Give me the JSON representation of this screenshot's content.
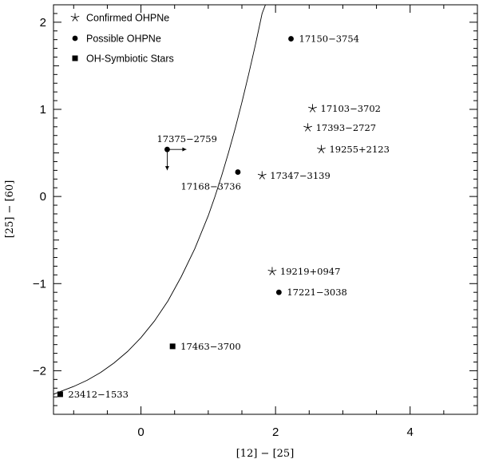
{
  "chart_data": {
    "type": "scatter",
    "xlabel": "[12] − [25]",
    "ylabel": "[25] − [60]",
    "xlim": [
      -1.3,
      5.0
    ],
    "ylim": [
      -2.5,
      2.2
    ],
    "x_major_ticks": [
      0,
      2,
      4
    ],
    "y_major_ticks": [
      -2,
      -1,
      0,
      1,
      2
    ],
    "tick_labels": {
      "x": [
        "0",
        "2",
        "4"
      ],
      "y": [
        "−2",
        "−1",
        "0",
        "1",
        "2"
      ]
    },
    "grid": false,
    "legend_position": "top-left",
    "legend": [
      {
        "label": "Confirmed OHPNe",
        "marker": "star"
      },
      {
        "label": "Possible OHPNe",
        "marker": "circle"
      },
      {
        "label": "OH-Symbiotic Stars",
        "marker": "square"
      }
    ],
    "points": [
      {
        "name": "17150−3754",
        "x": 2.23,
        "y": 1.81,
        "marker": "circle",
        "label_side": "right"
      },
      {
        "name": "17103−3702",
        "x": 2.55,
        "y": 1.01,
        "marker": "star",
        "label_side": "right"
      },
      {
        "name": "17393−2727",
        "x": 2.48,
        "y": 0.79,
        "marker": "star",
        "label_side": "right"
      },
      {
        "name": "19255+2123",
        "x": 2.68,
        "y": 0.54,
        "marker": "star",
        "label_side": "right"
      },
      {
        "name": "17375−2759",
        "x": 0.39,
        "y": 0.54,
        "marker": "circle",
        "label_side": "above",
        "limits": [
          "x-lower",
          "y-upper"
        ]
      },
      {
        "name": "17168−3736",
        "x": 1.44,
        "y": 0.28,
        "marker": "circle",
        "label_side": "below-left"
      },
      {
        "name": "17347−3139",
        "x": 1.8,
        "y": 0.24,
        "marker": "star",
        "label_side": "right"
      },
      {
        "name": "19219+0947",
        "x": 1.95,
        "y": -0.86,
        "marker": "star",
        "label_side": "right"
      },
      {
        "name": "17221−3038",
        "x": 2.05,
        "y": -1.1,
        "marker": "circle",
        "label_side": "right"
      },
      {
        "name": "17463−3700",
        "x": 0.47,
        "y": -1.72,
        "marker": "square",
        "label_side": "right"
      },
      {
        "name": "23412−1533",
        "x": -1.2,
        "y": -2.27,
        "marker": "square",
        "label_side": "right"
      }
    ],
    "curve": {
      "x": [
        -1.3,
        -1.2,
        -1.0,
        -0.8,
        -0.6,
        -0.4,
        -0.2,
        0.0,
        0.2,
        0.4,
        0.6,
        0.8,
        1.0,
        1.1,
        1.2,
        1.3,
        1.4,
        1.5,
        1.6,
        1.7,
        1.75,
        1.8,
        1.85
      ],
      "y": [
        -2.27,
        -2.24,
        -2.18,
        -2.11,
        -2.02,
        -1.91,
        -1.78,
        -1.62,
        -1.43,
        -1.2,
        -0.92,
        -0.6,
        -0.22,
        0.0,
        0.24,
        0.5,
        0.78,
        1.08,
        1.4,
        1.74,
        1.92,
        2.1,
        2.2
      ]
    }
  }
}
